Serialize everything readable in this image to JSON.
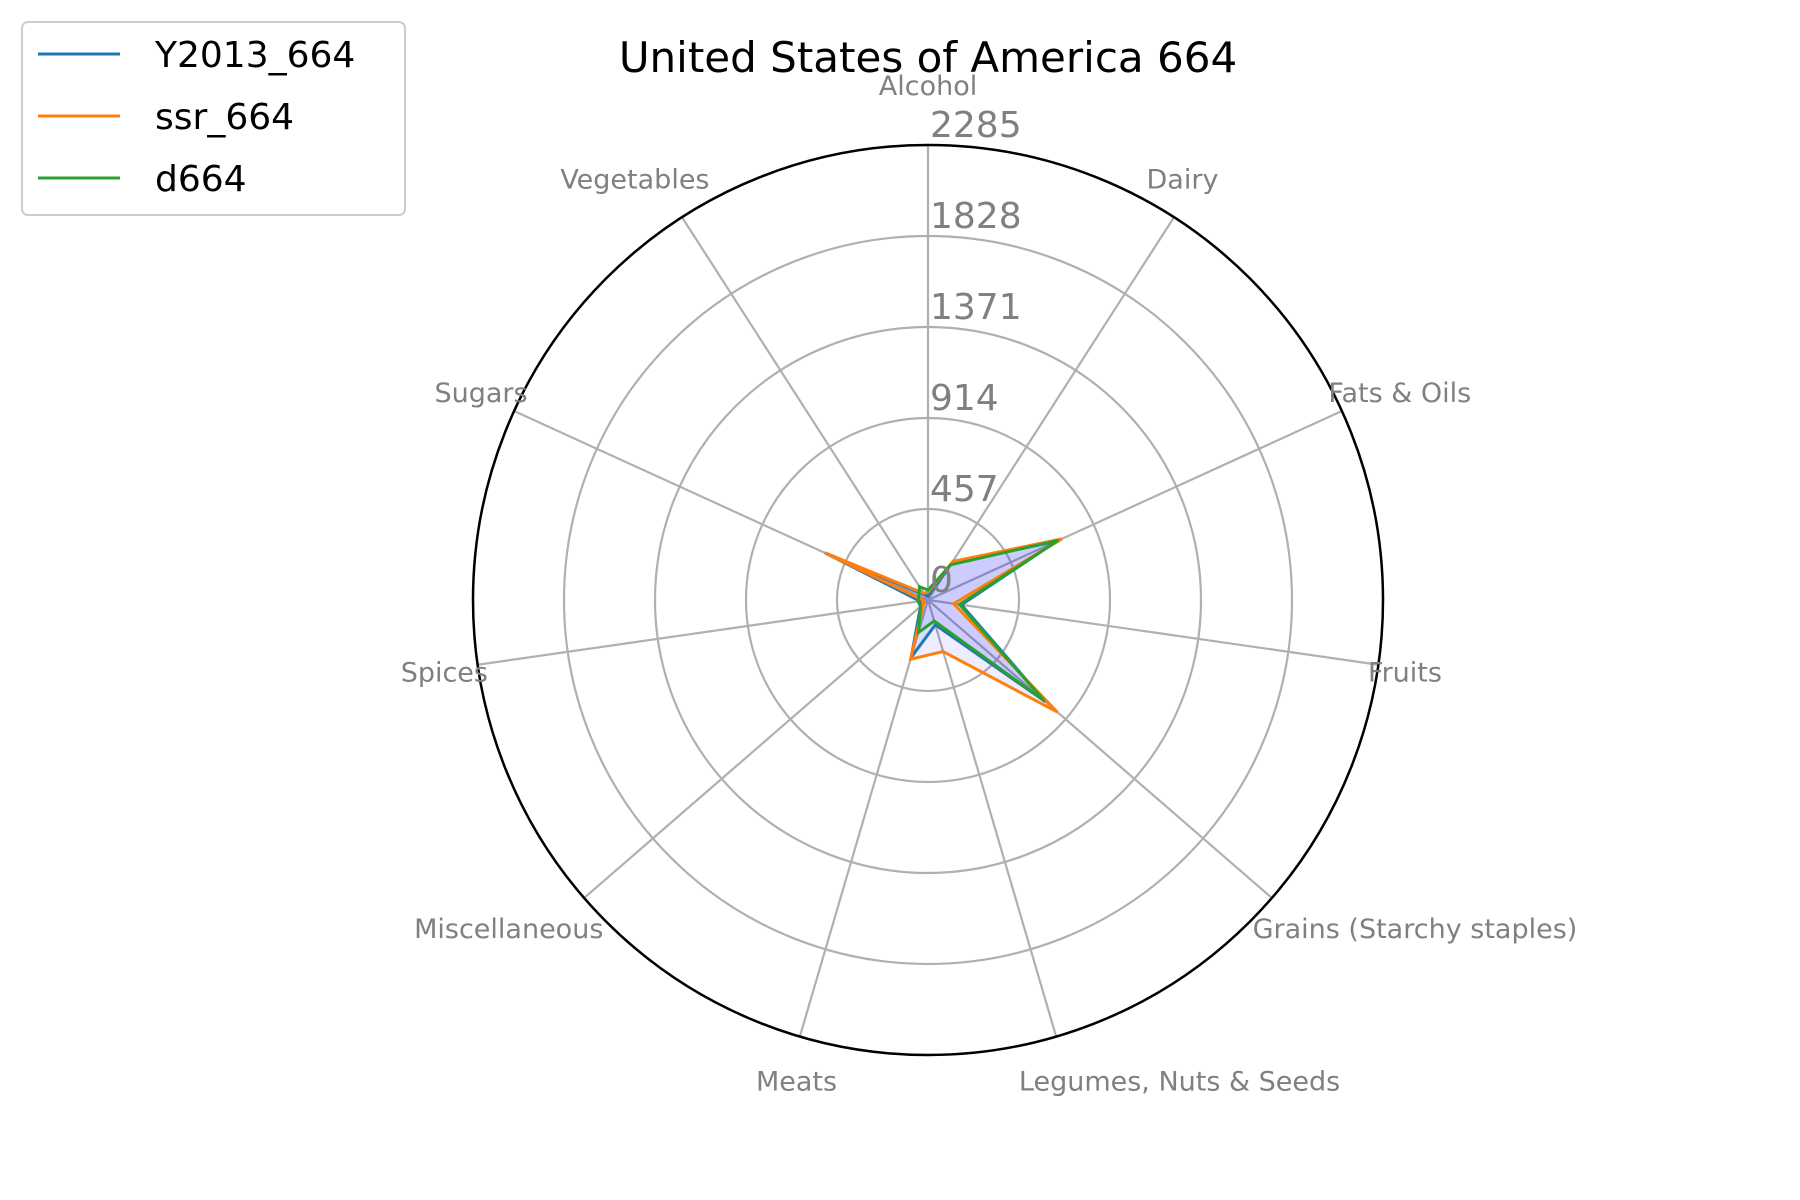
{
  "chart_data": {
    "type": "radar",
    "title": "United States of America 664",
    "categories": [
      "Alcohol",
      "Dairy",
      "Fats & Oils",
      "Fruits",
      "Grains (Starchy staples)",
      "Legumes, Nuts & Seeds",
      "Meats",
      "Miscellaneous",
      "Spices",
      "Sugars",
      "Vegetables"
    ],
    "rticks": [
      0,
      457,
      914,
      1371,
      1828,
      2285
    ],
    "rtick_labels": [
      "0",
      "457",
      "914",
      "1371",
      "1828",
      "2285"
    ],
    "rlim": [
      0,
      2285
    ],
    "grid": true,
    "legend_position": "top-left",
    "series": [
      {
        "name": "Y2013_664",
        "color": "#1f77b4",
        "values": [
          20,
          220,
          710,
          170,
          780,
          130,
          300,
          50,
          40,
          570,
          30
        ]
      },
      {
        "name": "ssr_664",
        "color": "#ff7f0e",
        "values": [
          40,
          230,
          740,
          130,
          860,
          270,
          310,
          30,
          20,
          570,
          40
        ]
      },
      {
        "name": "d664",
        "color": "#2ca02c",
        "values": [
          50,
          210,
          720,
          160,
          770,
          110,
          170,
          50,
          50,
          50,
          80
        ]
      }
    ],
    "fill_color": "#0000ff"
  }
}
